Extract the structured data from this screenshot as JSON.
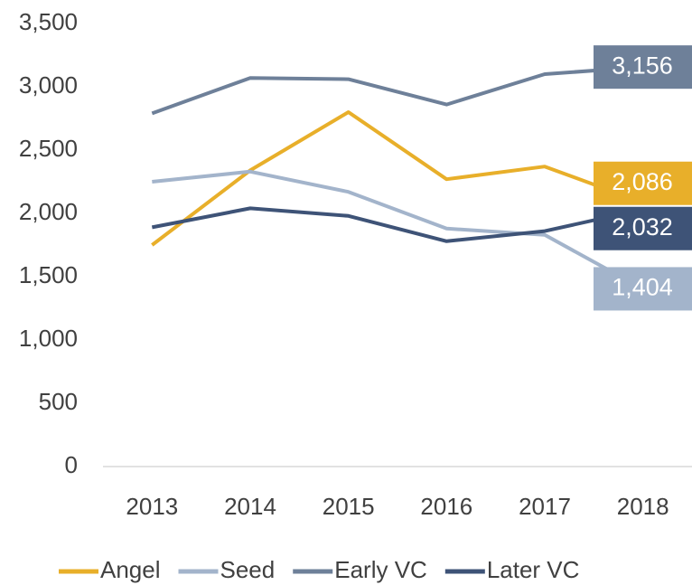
{
  "chart_data": {
    "type": "line",
    "categories": [
      "2013",
      "2014",
      "2015",
      "2016",
      "2017",
      "2018"
    ],
    "series": [
      {
        "name": "Angel",
        "color": "#E8AF2A",
        "values": [
          1750,
          2340,
          2800,
          2270,
          2370,
          2086
        ],
        "value_labels": [
          null,
          null,
          null,
          null,
          null,
          "2,086"
        ]
      },
      {
        "name": "Seed",
        "color": "#A3B4CB",
        "values": [
          2250,
          2330,
          2170,
          1880,
          1830,
          1404
        ],
        "value_labels": [
          null,
          null,
          null,
          null,
          null,
          "1,404"
        ]
      },
      {
        "name": "Early VC",
        "color": "#6E8099",
        "values": [
          2790,
          3070,
          3060,
          2860,
          3100,
          3156
        ],
        "value_labels": [
          null,
          null,
          null,
          null,
          null,
          "3,156"
        ]
      },
      {
        "name": "Later VC",
        "color": "#3E5377",
        "values": [
          1890,
          2040,
          1980,
          1780,
          1860,
          2032
        ],
        "value_labels": [
          null,
          null,
          null,
          null,
          null,
          "2,032"
        ]
      }
    ],
    "ylim": [
      0,
      3500
    ],
    "yticks": [
      0,
      500,
      {
        "value": 1000,
        "label": "1,000"
      },
      {
        "value": 1500,
        "label": "1,500"
      },
      {
        "value": 2000,
        "label": "2,000"
      },
      {
        "value": 2500,
        "label": "2,500"
      },
      {
        "value": 3000,
        "label": "3,000"
      },
      {
        "value": 3500,
        "label": "3,500"
      }
    ],
    "grid": false
  }
}
